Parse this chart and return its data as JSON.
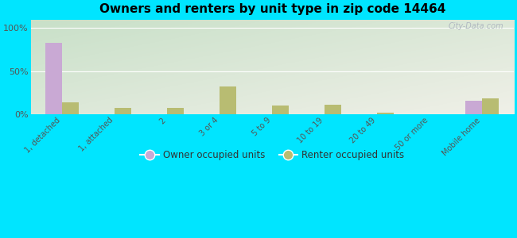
{
  "title": "Owners and renters by unit type in zip code 14464",
  "categories": [
    "1, detached",
    "1, attached",
    "2",
    "3 or 4",
    "5 to 9",
    "10 to 19",
    "20 to 49",
    "50 or more",
    "Mobile home"
  ],
  "owner_values": [
    83,
    0,
    0,
    0,
    0,
    0,
    0,
    0,
    15
  ],
  "renter_values": [
    14,
    7,
    7,
    32,
    10,
    11,
    2,
    0,
    18
  ],
  "owner_color": "#c9a9d4",
  "renter_color": "#b8bc72",
  "bg_top_left": "#c8e0c8",
  "bg_bottom_right": "#f0f0e8",
  "outer_bg": "#00e5ff",
  "yticks": [
    0,
    50,
    100
  ],
  "ylim": [
    0,
    110
  ],
  "bar_width": 0.32,
  "legend_owner": "Owner occupied units",
  "legend_renter": "Renter occupied units",
  "watermark": "City-Data.com"
}
